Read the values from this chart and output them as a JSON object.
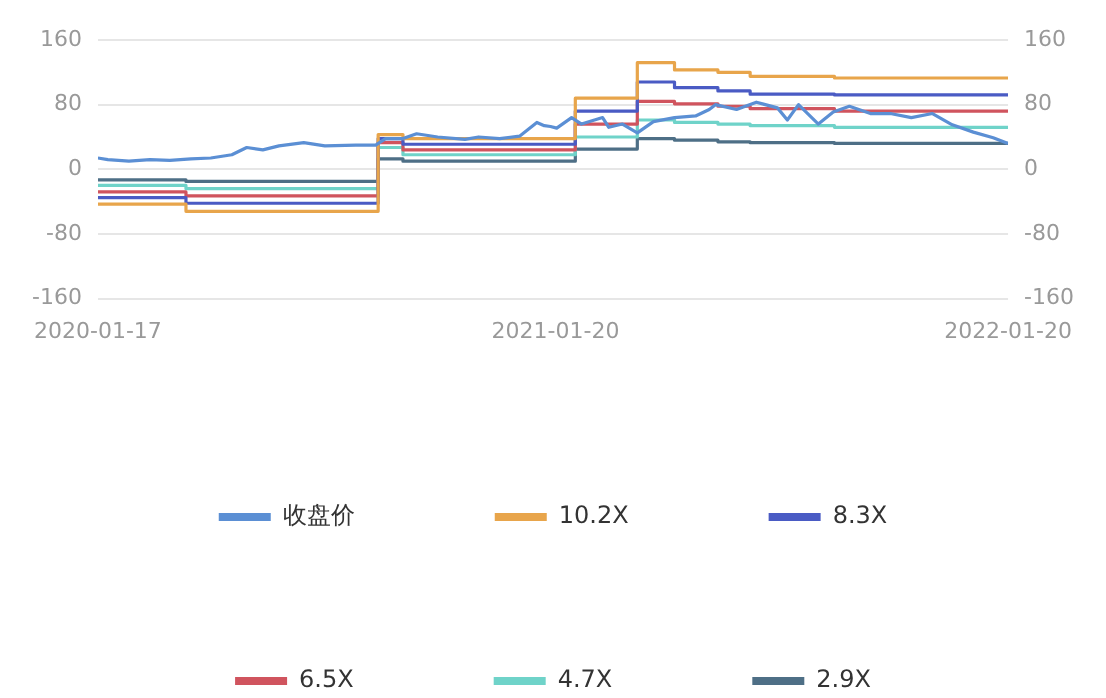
{
  "chart_data": {
    "type": "line",
    "legend": "bottom",
    "grid": "y",
    "marker": "none",
    "line_style": "solid",
    "xlim": [
      "2020-01-17",
      "2022-01-20"
    ],
    "xticks": [
      "2020-01-17",
      "2021-01-20",
      "2022-01-20"
    ],
    "ylim": [
      -160,
      160
    ],
    "yticks": [
      -160,
      -80,
      0,
      80,
      160
    ],
    "y2lim": [
      -160,
      160
    ],
    "y2ticks": [
      -160,
      -80,
      0,
      80,
      160
    ],
    "series": [
      {
        "name": "收盘价",
        "color": "#5b8fd4",
        "x": [
          "2020-01-17",
          "2020-01-25",
          "2020-02-11",
          "2020-02-28",
          "2020-03-15",
          "2020-04-01",
          "2020-04-17",
          "2020-05-04",
          "2020-05-16",
          "2020-05-29",
          "2020-06-11",
          "2020-07-01",
          "2020-07-18",
          "2020-08-12",
          "2020-08-28",
          "2020-09-05",
          "2020-09-19",
          "2020-09-30",
          "2020-10-17",
          "2020-11-08",
          "2020-11-19",
          "2020-12-06",
          "2020-12-22",
          "2021-01-05",
          "2021-01-11",
          "2021-01-16",
          "2021-01-21",
          "2021-02-02",
          "2021-02-10",
          "2021-02-27",
          "2021-03-04",
          "2021-03-15",
          "2021-03-27",
          "2021-04-09",
          "2021-04-26",
          "2021-05-13",
          "2021-05-24",
          "2021-05-29",
          "2021-06-15",
          "2021-07-01",
          "2021-07-18",
          "2021-07-26",
          "2021-08-04",
          "2021-08-20",
          "2021-09-01",
          "2021-09-14",
          "2021-10-01",
          "2021-10-17",
          "2021-11-03",
          "2021-11-20",
          "2021-12-06",
          "2021-12-23",
          "2022-01-08",
          "2022-01-20"
        ],
        "values": [
          14,
          12,
          10,
          12,
          11,
          13,
          14,
          18,
          27,
          24,
          29,
          33,
          29,
          30,
          30,
          38,
          38,
          44,
          40,
          37,
          40,
          38,
          41,
          58,
          54,
          53,
          51,
          64,
          56,
          64,
          52,
          56,
          45,
          59,
          64,
          66,
          74,
          80,
          74,
          83,
          76,
          61,
          80,
          56,
          71,
          78,
          69,
          69,
          64,
          69,
          55,
          46,
          39,
          32
        ]
      },
      {
        "name": "10.2X",
        "color": "#e8a54b",
        "type": "step",
        "x": [
          "2020-01-17",
          "2020-03-28",
          "2020-08-30",
          "2020-09-19",
          "2021-02-05",
          "2021-03-27",
          "2021-04-26",
          "2021-05-31",
          "2021-06-26",
          "2021-09-02",
          "2022-01-20"
        ],
        "values": [
          -43,
          -52,
          43,
          38,
          88,
          132,
          123,
          120,
          115,
          113,
          113
        ]
      },
      {
        "name": "8.3X",
        "color": "#4a5bc4",
        "type": "step",
        "x": [
          "2020-01-17",
          "2020-03-28",
          "2020-08-30",
          "2020-09-19",
          "2021-02-05",
          "2021-03-27",
          "2021-04-26",
          "2021-05-31",
          "2021-06-26",
          "2021-09-02",
          "2022-01-20"
        ],
        "values": [
          -35,
          -42,
          38,
          31,
          72,
          108,
          101,
          97,
          93,
          92,
          92
        ]
      },
      {
        "name": "6.5X",
        "color": "#d0545e",
        "type": "step",
        "x": [
          "2020-01-17",
          "2020-03-28",
          "2020-08-30",
          "2020-09-19",
          "2021-02-05",
          "2021-03-27",
          "2021-04-26",
          "2021-05-31",
          "2021-06-26",
          "2021-09-02",
          "2022-01-20"
        ],
        "values": [
          -28,
          -33,
          33,
          24,
          56,
          84,
          81,
          78,
          75,
          72,
          72
        ]
      },
      {
        "name": "4.7X",
        "color": "#6fd3c9",
        "type": "step",
        "x": [
          "2020-01-17",
          "2020-03-28",
          "2020-08-30",
          "2020-09-19",
          "2021-02-05",
          "2021-03-27",
          "2021-04-26",
          "2021-05-31",
          "2021-06-26",
          "2021-09-02",
          "2022-01-20"
        ],
        "values": [
          -20,
          -24,
          27,
          18,
          40,
          61,
          58,
          56,
          54,
          52,
          52
        ]
      },
      {
        "name": "2.9X",
        "color": "#4e6f86",
        "type": "step",
        "x": [
          "2020-01-17",
          "2020-03-28",
          "2020-08-30",
          "2020-09-19",
          "2021-02-05",
          "2021-03-27",
          "2021-04-26",
          "2021-05-31",
          "2021-06-26",
          "2021-09-02",
          "2022-01-20"
        ],
        "values": [
          -13,
          -15,
          13,
          10,
          25,
          38,
          36,
          34,
          33,
          32,
          32
        ]
      }
    ]
  }
}
